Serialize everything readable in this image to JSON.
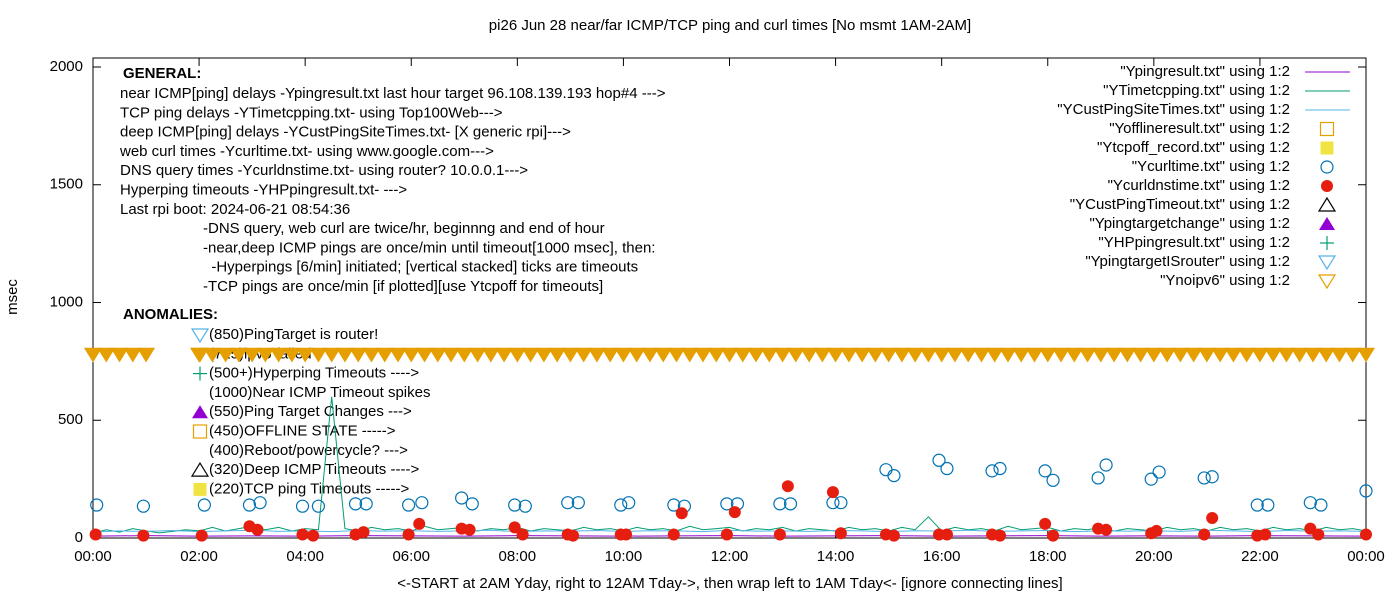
{
  "chart_data": {
    "type": "scatter",
    "title": "pi26 Jun 28  near/far ICMP/TCP ping and curl times [No msmt 1AM-2AM]",
    "ylabel": "msec",
    "xlabel": "<-START at 2AM Yday, right to 12AM Tday->, then wrap left to 1AM Tday<- [ignore connecting lines]",
    "xlim": [
      0,
      24
    ],
    "ylim": [
      0,
      2000
    ],
    "yticks": [
      0,
      500,
      1000,
      1500,
      2000
    ],
    "xticks": [
      {
        "value": 0,
        "label": "00:00"
      },
      {
        "value": 2,
        "label": "02:00"
      },
      {
        "value": 4,
        "label": "04:00"
      },
      {
        "value": 6,
        "label": "06:00"
      },
      {
        "value": 8,
        "label": "08:00"
      },
      {
        "value": 10,
        "label": "10:00"
      },
      {
        "value": 12,
        "label": "12:00"
      },
      {
        "value": 14,
        "label": "14:00"
      },
      {
        "value": 16,
        "label": "16:00"
      },
      {
        "value": 18,
        "label": "18:00"
      },
      {
        "value": 20,
        "label": "20:00"
      },
      {
        "value": 22,
        "label": "22:00"
      },
      {
        "value": 24,
        "label": "00:00"
      }
    ],
    "general_title": "GENERAL:",
    "general_lines": [
      "near ICMP[ping] delays -Ypingresult.txt last hour target 96.108.139.193 hop#4 --->",
      "TCP ping delays -YTimetcpping.txt- using Top100Web--->",
      "deep ICMP[ping] delays -YCustPingSiteTimes.txt- [X generic rpi]--->",
      "web curl times -Ycurltime.txt- using www.google.com--->",
      "DNS query times -Ycurldnstime.txt- using router? 10.0.0.1--->",
      "Hyperping timeouts -YHPpingresult.txt- --->",
      "Last rpi boot: 2024-06-21 08:54:36"
    ],
    "notes": [
      "-DNS query, web curl are twice/hr, beginnng and end of hour",
      "-near,deep ICMP pings are once/min until timeout[1000 msec], then:",
      "  -Hyperpings [6/min] initiated; [vertical stacked] ticks are timeouts",
      "-TCP pings are once/min [if plotted][use Ytcpoff for timeouts]"
    ],
    "anomalies_title": "ANOMALIES:",
    "anomalies": [
      "(850)PingTarget is router!",
      "(725)ipv6 failed",
      "(500+)Hyperping Timeouts ---->",
      "(1000)Near ICMP Timeout spikes",
      "(550)Ping Target Changes --->",
      "(450)OFFLINE STATE ----->",
      "(400)Reboot/powercycle? --->",
      "(320)Deep ICMP Timeouts ---->",
      "(220)TCP ping Timeouts ----->"
    ],
    "series": [
      {
        "name": "\"Ypingresult.txt\" using 1:2",
        "color": "#9400d3",
        "marker": "line",
        "x": [
          0,
          1,
          2,
          3,
          4,
          5,
          6,
          7,
          8,
          9,
          10,
          11,
          12,
          13,
          14,
          15,
          16,
          17,
          18,
          19,
          20,
          21,
          22,
          23,
          24
        ],
        "values": [
          8,
          10,
          8,
          9,
          8,
          10,
          9,
          8,
          10,
          9,
          8,
          9,
          10,
          8,
          9,
          10,
          8,
          9,
          10,
          8,
          9,
          8,
          10,
          9,
          8
        ]
      },
      {
        "name": "\"YTimetcpping.txt\" using 1:2",
        "color": "#009e73",
        "marker": "line",
        "x": [
          0,
          0.25,
          0.5,
          0.75,
          1,
          1.25,
          1.5,
          1.75,
          2,
          2.25,
          2.5,
          2.75,
          3,
          3.25,
          3.5,
          3.75,
          4,
          4.25,
          4.5,
          4.75,
          5,
          5.25,
          5.5,
          5.75,
          6,
          6.25,
          6.5,
          6.75,
          7,
          7.25,
          7.5,
          7.75,
          8,
          8.25,
          8.5,
          8.75,
          9,
          9.25,
          9.5,
          9.75,
          10,
          10.25,
          10.5,
          10.75,
          11,
          11.25,
          11.5,
          11.75,
          12,
          12.25,
          12.5,
          12.75,
          13,
          13.25,
          13.5,
          13.75,
          14,
          14.25,
          14.5,
          14.75,
          15,
          15.25,
          15.5,
          15.75,
          16,
          16.25,
          16.5,
          16.75,
          17,
          17.25,
          17.5,
          17.75,
          18,
          18.25,
          18.5,
          18.75,
          19,
          19.25,
          19.5,
          19.75,
          20,
          20.25,
          20.5,
          20.75,
          21,
          21.25,
          21.5,
          21.75,
          22,
          22.25,
          22.5,
          22.75,
          23,
          23.25,
          23.5,
          23.75,
          24
        ],
        "values": [
          20,
          35,
          25,
          40,
          30,
          22,
          28,
          35,
          30,
          45,
          30,
          40,
          50,
          35,
          45,
          30,
          40,
          35,
          600,
          40,
          30,
          45,
          35,
          40,
          30,
          50,
          35,
          40,
          45,
          30,
          40,
          35,
          45,
          30,
          40,
          35,
          30,
          45,
          35,
          40,
          30,
          45,
          35,
          40,
          30,
          50,
          35,
          40,
          45,
          30,
          40,
          35,
          45,
          30,
          40,
          35,
          30,
          45,
          35,
          40,
          30,
          45,
          35,
          90,
          30,
          45,
          35,
          40,
          30,
          50,
          35,
          40,
          45,
          30,
          40,
          35,
          45,
          30,
          40,
          35,
          30,
          45,
          35,
          40,
          30,
          45,
          35,
          40,
          30,
          45,
          35,
          40,
          30,
          45,
          35,
          40,
          30
        ]
      },
      {
        "name": "\"YCustPingSiteTimes.txt\" using 1:2",
        "color": "#56b4e9",
        "marker": "line",
        "x": [
          0,
          0.5,
          1,
          1.5,
          2,
          2.5,
          3,
          3.5,
          4,
          4.5,
          5,
          5.5,
          6,
          6.5,
          7,
          7.5,
          8,
          8.5,
          9,
          9.5,
          10,
          10.5,
          11,
          11.5,
          12,
          12.5,
          13,
          13.5,
          14,
          14.5,
          15,
          15.5,
          16,
          16.5,
          17,
          17.5,
          18,
          18.5,
          19,
          19.5,
          20,
          20.5,
          21,
          21.5,
          22,
          22.5,
          23,
          23.5,
          24
        ],
        "values": [
          25,
          30,
          28,
          32,
          27,
          30,
          33,
          28,
          30,
          27,
          32,
          29,
          31,
          28,
          30,
          33,
          27,
          30,
          29,
          32,
          28,
          31,
          30,
          27,
          33,
          29,
          30,
          28,
          32,
          30,
          27,
          31,
          29,
          33,
          28,
          30,
          32,
          27,
          30,
          29,
          31,
          28,
          33,
          30,
          27,
          32,
          29,
          30,
          28
        ]
      },
      {
        "name": "\"Yofflineresult.txt\" using 1:2",
        "color": "#e69f00",
        "marker": "square-open",
        "x": [],
        "values": []
      },
      {
        "name": "\"Ytcpoff_record.txt\" using 1:2",
        "color": "#f0e442",
        "marker": "square-filled",
        "x": [],
        "values": []
      },
      {
        "name": "\"Ycurltime.txt\" using 1:2",
        "color": "#0072b2",
        "marker": "circle-open",
        "x": [
          0.07,
          0.95,
          2.1,
          2.95,
          3.15,
          3.95,
          4.25,
          4.95,
          5.15,
          5.95,
          6.2,
          6.95,
          7.15,
          7.95,
          8.15,
          8.95,
          9.15,
          9.95,
          10.1,
          10.95,
          11.15,
          11.95,
          12.15,
          12.95,
          13.15,
          13.95,
          14.1,
          14.95,
          15.1,
          15.95,
          16.1,
          16.95,
          17.1,
          17.95,
          18.1,
          18.95,
          19.1,
          19.95,
          20.1,
          20.95,
          21.1,
          21.95,
          22.15,
          22.95,
          23.15,
          24
        ],
        "values": [
          140,
          135,
          140,
          140,
          150,
          135,
          135,
          145,
          145,
          140,
          150,
          170,
          145,
          140,
          135,
          150,
          150,
          140,
          150,
          140,
          135,
          145,
          145,
          145,
          145,
          150,
          150,
          290,
          265,
          330,
          295,
          285,
          295,
          285,
          245,
          255,
          310,
          250,
          280,
          255,
          260,
          140,
          140,
          150,
          140,
          200
        ]
      },
      {
        "name": "\"Ycurldnstime.txt\" using 1:2",
        "color": "#e51e10",
        "marker": "circle-filled",
        "x": [
          0.05,
          0.95,
          2.05,
          2.95,
          3.1,
          3.95,
          4.15,
          4.95,
          5.1,
          5.95,
          6.15,
          6.95,
          7.1,
          7.95,
          8.1,
          8.95,
          9.05,
          9.95,
          10.05,
          10.95,
          11.1,
          11.95,
          12.1,
          12.95,
          13.1,
          13.95,
          14.1,
          14.95,
          15.1,
          15.95,
          16.1,
          16.95,
          17.1,
          17.95,
          18.1,
          18.95,
          19.1,
          19.95,
          20.05,
          20.95,
          21.1,
          21.95,
          22.1,
          22.95,
          23.1,
          24
        ],
        "values": [
          15,
          10,
          10,
          50,
          35,
          15,
          10,
          15,
          25,
          15,
          60,
          40,
          35,
          45,
          15,
          15,
          10,
          15,
          15,
          15,
          105,
          15,
          110,
          15,
          220,
          195,
          20,
          15,
          10,
          15,
          15,
          15,
          10,
          60,
          10,
          40,
          35,
          20,
          30,
          15,
          85,
          10,
          15,
          40,
          15,
          15
        ]
      },
      {
        "name": "\"YCustPingTimeout.txt\" using 1:2",
        "color": "#000000",
        "marker": "triangle-open",
        "x": [],
        "values": []
      },
      {
        "name": "\"Ypingtargetchange\" using 1:2",
        "color": "#9400d3",
        "marker": "triangle-filled",
        "x": [],
        "values": []
      },
      {
        "name": "\"YHPpingresult.txt\" using 1:2",
        "color": "#009e73",
        "marker": "plus",
        "x": [],
        "values": []
      },
      {
        "name": "\"YpingtargetISrouter\" using 1:2",
        "color": "#56b4e9",
        "marker": "tri-down-open",
        "x": [],
        "values": []
      },
      {
        "name": "\"Ynoipv6\" using 1:2",
        "color": "#e69f00",
        "marker": "tri-down-open",
        "x": [
          0,
          0.25,
          0.5,
          0.75,
          1,
          2,
          2.25,
          2.5,
          2.75,
          3,
          3.25,
          3.5,
          3.75,
          4,
          4.25,
          4.5,
          4.75,
          5,
          5.25,
          5.5,
          5.75,
          6,
          6.25,
          6.5,
          6.75,
          7,
          7.25,
          7.5,
          7.75,
          8,
          8.25,
          8.5,
          8.75,
          9,
          9.25,
          9.5,
          9.75,
          10,
          10.25,
          10.5,
          10.75,
          11,
          11.25,
          11.5,
          11.75,
          12,
          12.25,
          12.5,
          12.75,
          13,
          13.25,
          13.5,
          13.75,
          14,
          14.25,
          14.5,
          14.75,
          15,
          15.25,
          15.5,
          15.75,
          16,
          16.25,
          16.5,
          16.75,
          17,
          17.25,
          17.5,
          17.75,
          18,
          18.25,
          18.5,
          18.75,
          19,
          19.25,
          19.5,
          19.75,
          20,
          20.25,
          20.5,
          20.75,
          21,
          21.25,
          21.5,
          21.75,
          22,
          22.25,
          22.5,
          22.75,
          23,
          23.25,
          23.5,
          23.75,
          24
        ],
        "values": [
          780,
          780,
          780,
          780,
          780,
          780,
          780,
          780,
          780,
          780,
          780,
          780,
          780,
          780,
          780,
          780,
          780,
          780,
          780,
          780,
          780,
          780,
          780,
          780,
          780,
          780,
          780,
          780,
          780,
          780,
          780,
          780,
          780,
          780,
          780,
          780,
          780,
          780,
          780,
          780,
          780,
          780,
          780,
          780,
          780,
          780,
          780,
          780,
          780,
          780,
          780,
          780,
          780,
          780,
          780,
          780,
          780,
          780,
          780,
          780,
          780,
          780,
          780,
          780,
          780,
          780,
          780,
          780,
          780,
          780,
          780,
          780,
          780,
          780,
          780,
          780,
          780,
          780,
          780,
          780,
          780,
          780,
          780,
          780,
          780,
          780,
          780,
          780,
          780,
          780,
          780,
          780,
          780,
          780
        ]
      }
    ]
  }
}
